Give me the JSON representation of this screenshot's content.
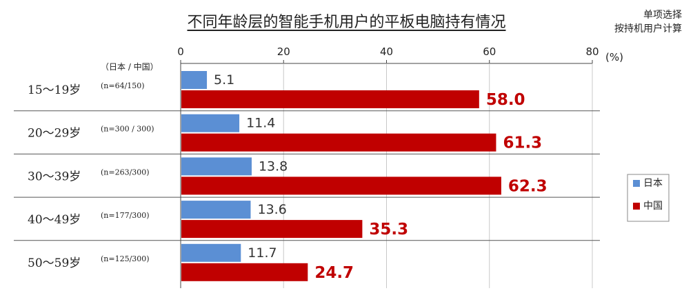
{
  "title": "不同年龄层的智能手机用户的平板电脑持有情况",
  "note": [
    "单项选择",
    "按持机用户计算"
  ],
  "chart_data": {
    "type": "bar",
    "orientation": "horizontal",
    "title": "不同年龄层的智能手机用户的平板电脑持有情况",
    "unit": "(%)",
    "sample_header": "（日本 / 中国）",
    "xlim": [
      0,
      80
    ],
    "xticks": [
      0,
      20,
      40,
      60,
      80
    ],
    "grid": true,
    "categories": [
      "15～19岁",
      "20～29岁",
      "30～39岁",
      "40～49岁",
      "50～59岁"
    ],
    "sample_sizes": [
      "(n=64/150)",
      "(n=300 / 300)",
      "(n=263/300)",
      "(n=177/300)",
      "(n=125/300)"
    ],
    "series": [
      {
        "name": "日本",
        "color": "#5b8fd4",
        "values": [
          5.1,
          11.4,
          13.8,
          13.6,
          11.7
        ]
      },
      {
        "name": "中国",
        "color": "#c00000",
        "values": [
          58.0,
          61.3,
          62.3,
          35.3,
          24.7
        ]
      }
    ],
    "legend_position": "right"
  }
}
